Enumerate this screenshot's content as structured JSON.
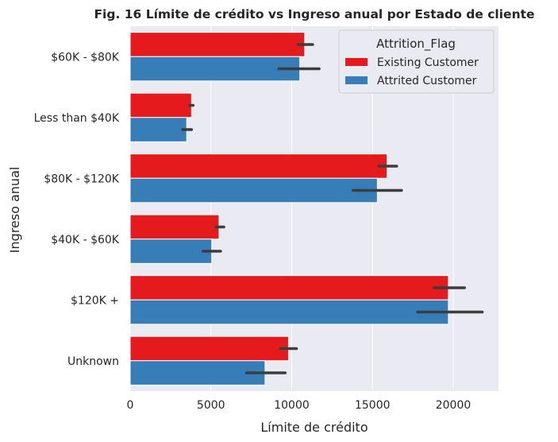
{
  "chart_data": {
    "type": "bar",
    "orientation": "horizontal",
    "title": "Fig. 16 Límite de crédito vs Ingreso anual por Estado de cliente",
    "xlabel": "Límite de crédito",
    "ylabel": "Ingreso anual",
    "xlim": [
      0,
      22800
    ],
    "xticks": [
      "0",
      "5000",
      "10000",
      "15000",
      "20000"
    ],
    "categories": [
      "$60K - $80K",
      "Less than $40K",
      "$80K - $120K",
      "$40K - $60K",
      "$120K +",
      "Unknown"
    ],
    "series": [
      {
        "name": "Existing Customer",
        "color": "#e41a1c",
        "values": [
          10800,
          3800,
          15900,
          5500,
          19700,
          9800
        ],
        "ci_low": [
          10400,
          3700,
          15400,
          5300,
          18800,
          9300
        ],
        "ci_high": [
          11300,
          3900,
          16500,
          5800,
          20700,
          10300
        ]
      },
      {
        "name": "Attrited Customer",
        "color": "#377eb8",
        "values": [
          10500,
          3500,
          15300,
          5050,
          19700,
          8350
        ],
        "ci_low": [
          9200,
          3250,
          13800,
          4500,
          17800,
          7200
        ],
        "ci_high": [
          11700,
          3800,
          16800,
          5600,
          21800,
          9600
        ]
      }
    ],
    "legend_title": "Attrition_Flag",
    "legend_position": "top-right",
    "background_color": "#eaeaf2",
    "grid": true
  }
}
